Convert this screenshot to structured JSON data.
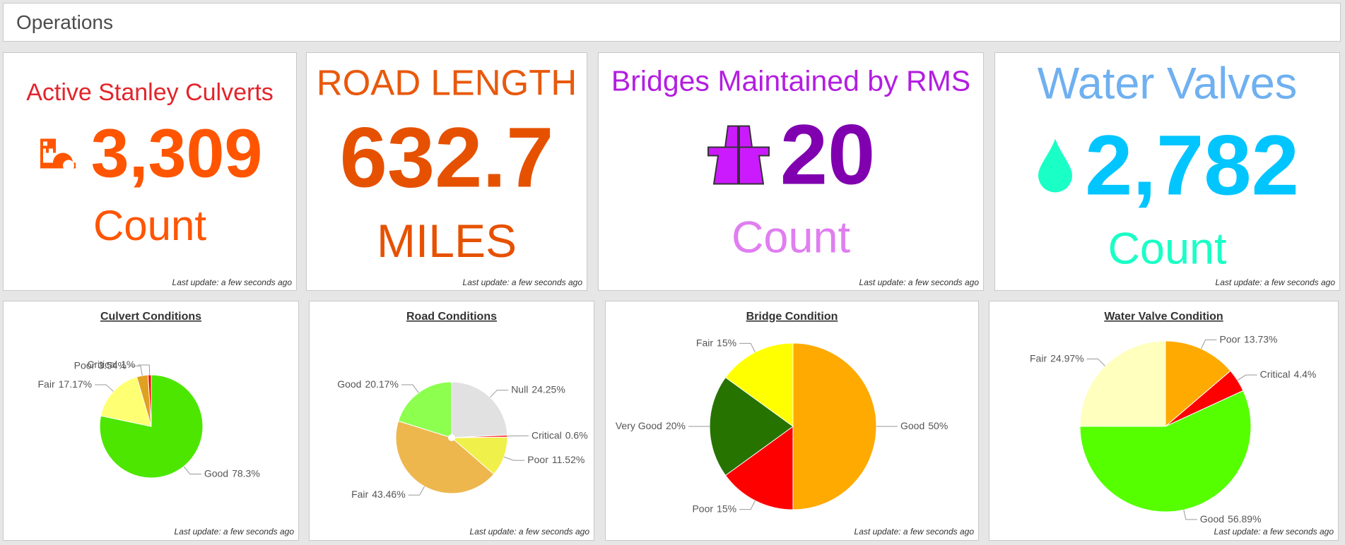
{
  "header": {
    "title": "Operations"
  },
  "indicators": [
    {
      "title": "Active Stanley Culverts",
      "value": "3,309",
      "unit": "Count",
      "footer": "Last update: a few seconds ago"
    },
    {
      "title": "ROAD LENGTH",
      "value": "632.7",
      "unit": "MILES",
      "footer": "Last update: a few seconds ago"
    },
    {
      "title": "Bridges Maintained by RMS",
      "value": "20",
      "unit": "Count",
      "footer": "Last update: a few seconds ago"
    },
    {
      "title": "Water Valves",
      "value": "2,782",
      "unit": "Count",
      "footer": "Last update: a few seconds ago"
    }
  ],
  "chart_data": [
    {
      "type": "pie",
      "title": "Culvert Conditions",
      "categories": [
        "Good",
        "Fair",
        "Poor",
        "Critical"
      ],
      "values": [
        78.3,
        17.17,
        3.54,
        1
      ],
      "value_labels": [
        "78.3%",
        "17.17%",
        "3.54%",
        "1%"
      ],
      "colors": [
        "#4ce600",
        "#ffff73",
        "#e0a020",
        "#ff0000"
      ],
      "annotation": "Last update: a few seconds ago"
    },
    {
      "type": "pie",
      "title": "Road Conditions",
      "categories": [
        "Null",
        "Critical",
        "Poor",
        "Fair",
        "Good"
      ],
      "values": [
        24.25,
        0.6,
        11.52,
        43.46,
        20.17
      ],
      "value_labels": [
        "24.25%",
        "0.6%",
        "11.52%",
        "43.46%",
        "20.17%"
      ],
      "colors": [
        "#e1e1e1",
        "#ff3030",
        "#f0f04a",
        "#edb74e",
        "#8cff4f"
      ],
      "annotation": "Last update: a few seconds ago"
    },
    {
      "type": "pie",
      "title": "Bridge Condition",
      "categories": [
        "Good",
        "Poor",
        "Very Good",
        "Fair"
      ],
      "values": [
        50,
        15,
        20,
        15
      ],
      "value_labels": [
        "50%",
        "15%",
        "20%",
        "15%"
      ],
      "colors": [
        "#ffaa00",
        "#ff0000",
        "#267300",
        "#ffff00"
      ],
      "annotation": "Last update: a few seconds ago"
    },
    {
      "type": "pie",
      "title": "Water Valve Condition",
      "categories": [
        "Poor",
        "Critical",
        "Good",
        "Fair"
      ],
      "values": [
        13.73,
        4.4,
        56.89,
        24.97
      ],
      "value_labels": [
        "13.73%",
        "4.4%",
        "56.89%",
        "24.97%"
      ],
      "colors": [
        "#ffaa00",
        "#ff0000",
        "#55ff00",
        "#ffffbe"
      ],
      "annotation": "Last update: a few seconds ago"
    }
  ]
}
